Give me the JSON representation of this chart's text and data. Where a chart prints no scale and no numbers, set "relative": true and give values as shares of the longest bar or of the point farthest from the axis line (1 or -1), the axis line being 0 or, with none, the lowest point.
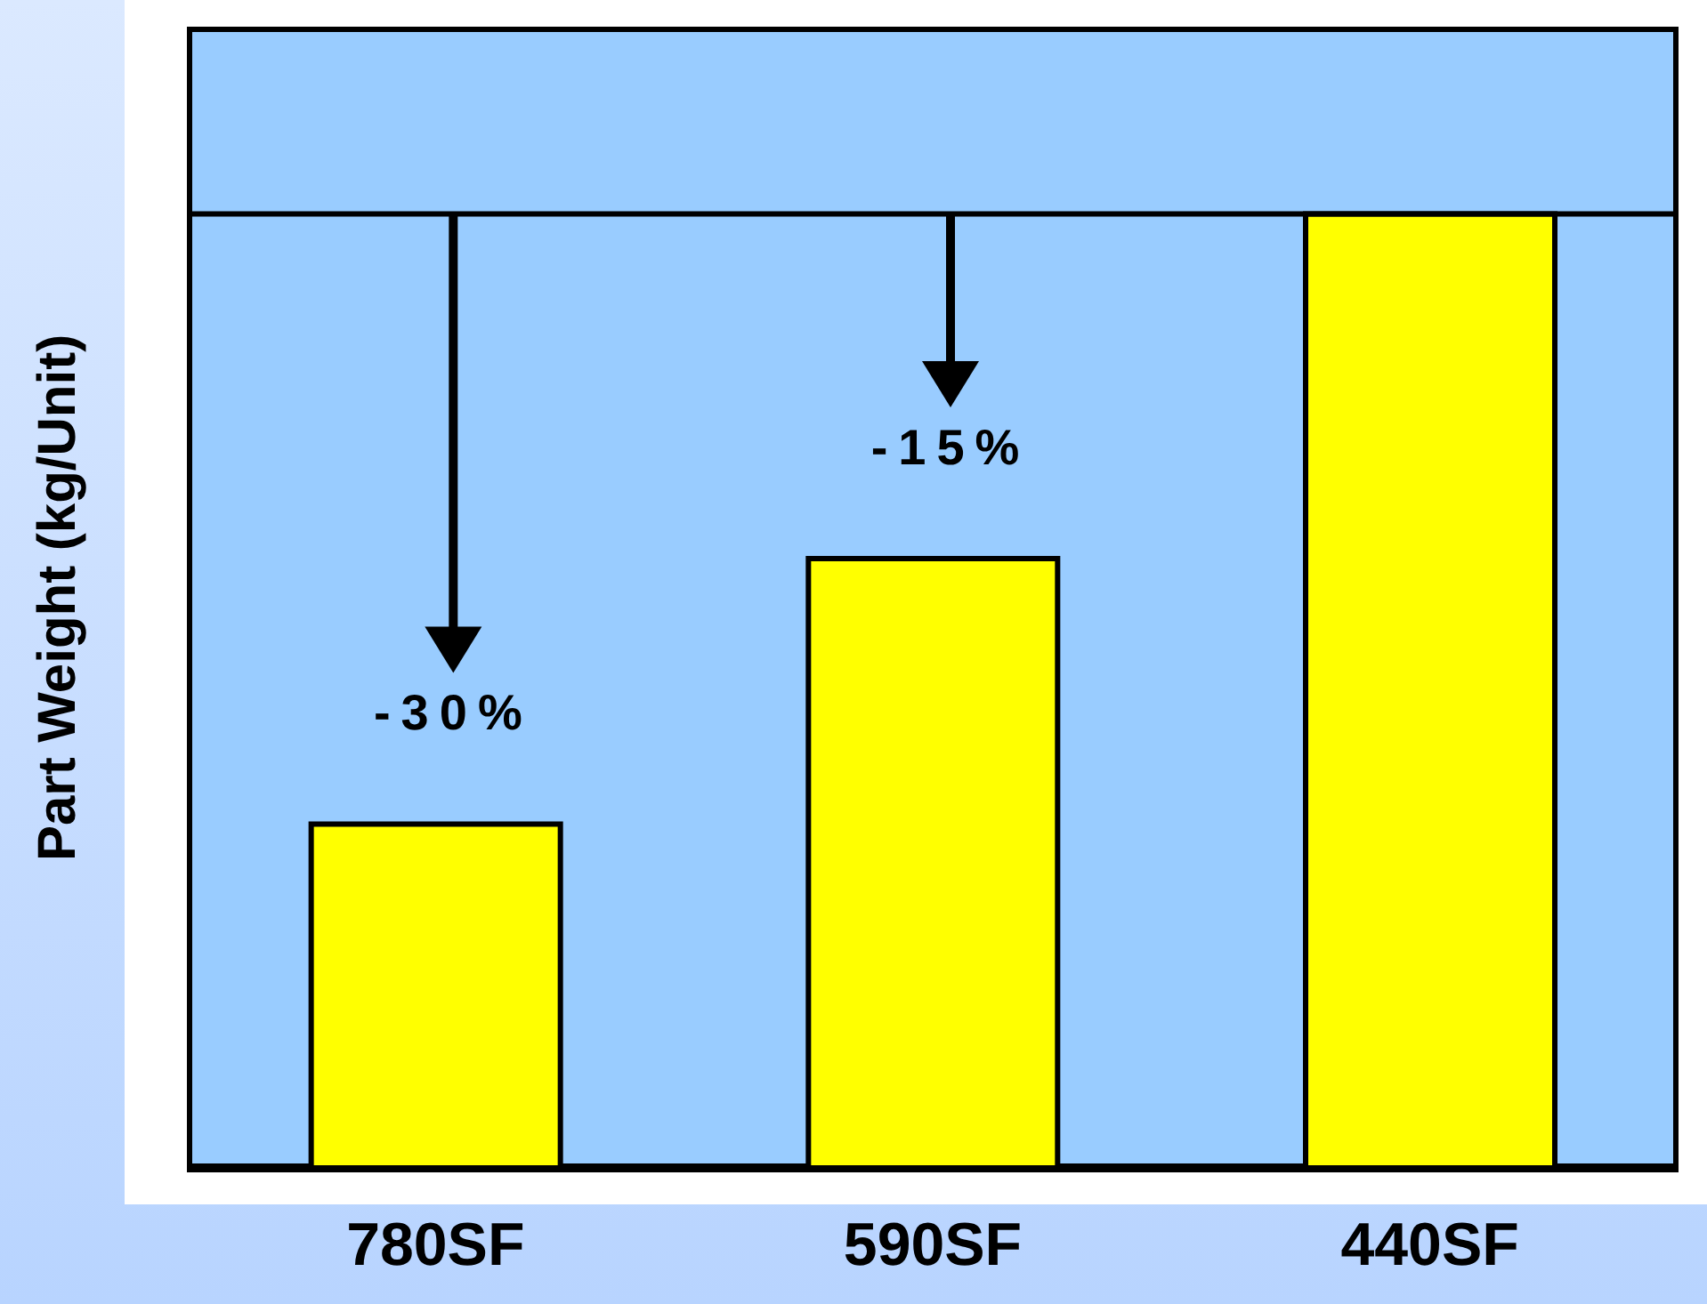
{
  "chart_data": {
    "type": "bar",
    "relative": true,
    "ylabel": "Part Weight (kg/Unit)",
    "categories": [
      "780SF",
      "590SF",
      "440SF"
    ],
    "values": [
      0.361,
      0.639,
      1
    ],
    "color": "#ffff00",
    "ref_lines": [
      {
        "axis": "y",
        "value": 1,
        "color": "#000000"
      }
    ],
    "annotations": [
      "-30%",
      "-15%"
    ]
  }
}
